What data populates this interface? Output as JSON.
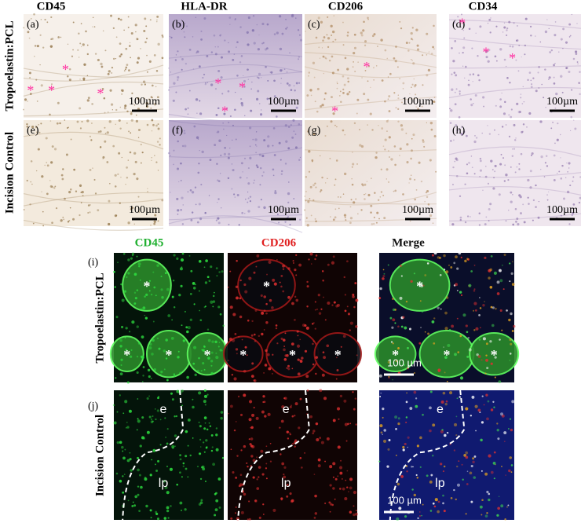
{
  "top_figure": {
    "columns": [
      "CD45",
      "HLA-DR",
      "CD206",
      "CD34"
    ],
    "rows": [
      "Tropoelastin:PCL",
      "Incision Control"
    ],
    "marker": "*",
    "scale_bar": "100µm",
    "panels": [
      "(a)",
      "(b)",
      "(c)",
      "(d)",
      "(e)",
      "(f)",
      "(g)",
      "(h)"
    ]
  },
  "bottom_figure": {
    "columns": [
      "CD45",
      "CD206",
      "Merge"
    ],
    "rows": [
      "Tropoelastin:PCL",
      "Incision Control"
    ],
    "marker": "*",
    "scale_bar": "100 µm",
    "panels": [
      "(i)",
      "(j)"
    ],
    "regions": [
      "e",
      "lp"
    ]
  }
}
